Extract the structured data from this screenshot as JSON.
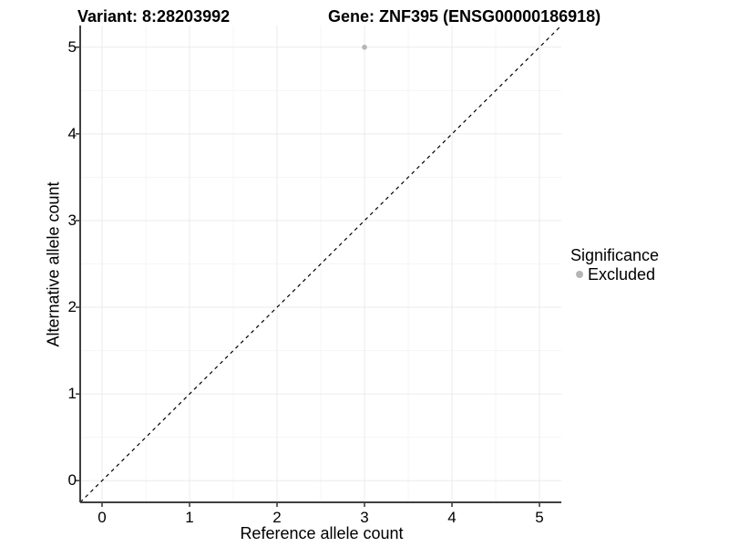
{
  "chart_data": {
    "type": "scatter",
    "title_left": "Variant: 8:28203992",
    "title_right": "Gene: ZNF395 (ENSG00000186918)",
    "xlabel": "Reference allele count",
    "ylabel": "Alternative allele count",
    "xlim": [
      -0.25,
      5.25
    ],
    "ylim": [
      -0.25,
      5.25
    ],
    "xticks": [
      0,
      1,
      2,
      3,
      4,
      5
    ],
    "yticks": [
      0,
      1,
      2,
      3,
      4,
      5
    ],
    "minor_ticks": [
      0.5,
      1.5,
      2.5,
      3.5,
      4.5
    ],
    "grid": true,
    "points": [
      {
        "x": 3,
        "y": 5,
        "series": "Excluded"
      }
    ],
    "identity_line": {
      "style": "dashed",
      "from": [
        -0.25,
        -0.25
      ],
      "to": [
        5.25,
        5.25
      ],
      "color": "#000000"
    },
    "legend": {
      "title": "Significance",
      "position": "right",
      "items": [
        {
          "label": "Excluded",
          "color": "#b5b5b5"
        }
      ]
    },
    "colors": {
      "point": "#b5b5b5",
      "grid_major": "#ebebeb",
      "grid_minor": "#f5f5f5",
      "axis_line": "#404040",
      "tick_mark": "#333333",
      "background": "#ffffff"
    }
  }
}
